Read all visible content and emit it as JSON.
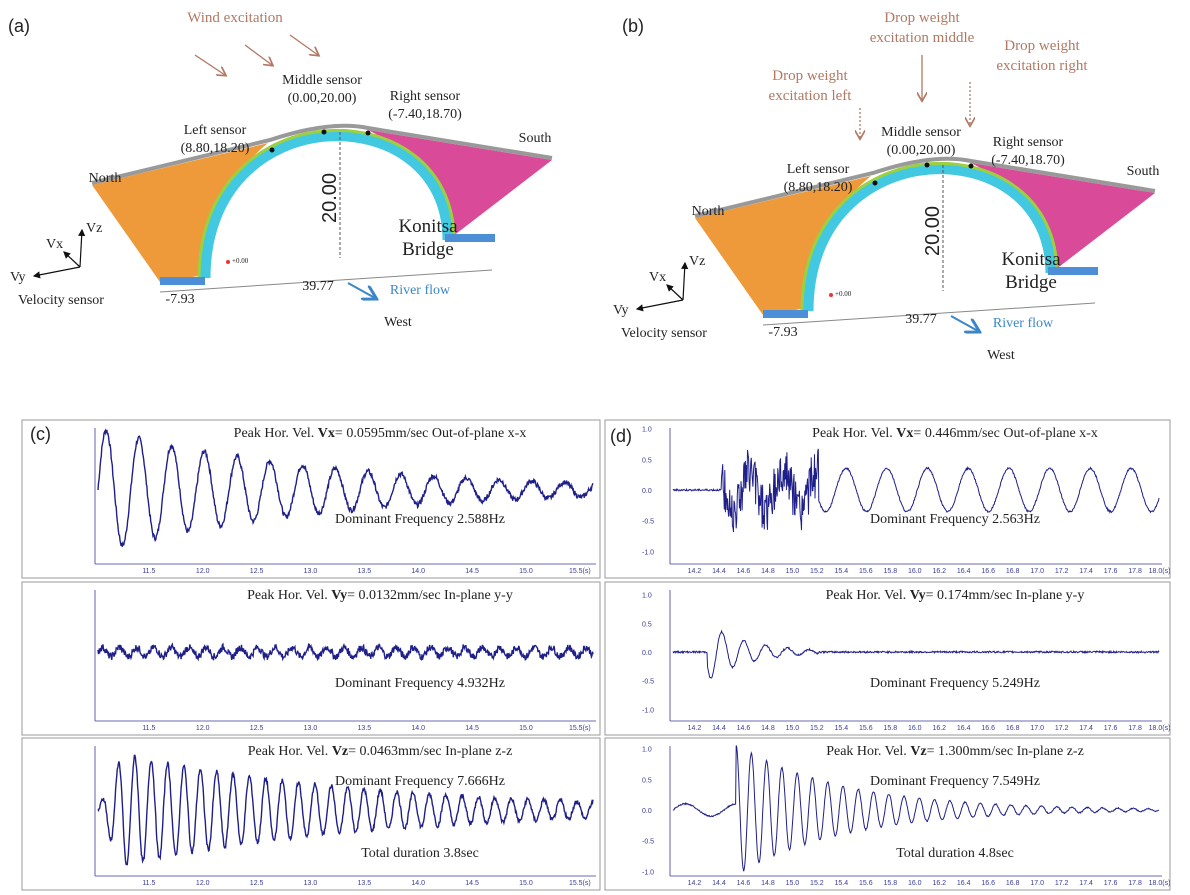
{
  "a": {
    "label": "(a)",
    "excitation": "Wind excitation",
    "north": "North",
    "south": "South",
    "left_sensor": [
      "Left sensor",
      "(8.80,18.20)"
    ],
    "middle_sensor": [
      "Middle sensor",
      "(0.00,20.00)"
    ],
    "right_sensor": [
      "Right sensor",
      "(-7.40,18.70)"
    ],
    "height": "20.00",
    "span": "39.77",
    "offset": "-7.93",
    "bridge": [
      "Konitsa",
      "Bridge"
    ],
    "river": "River flow",
    "west": "West",
    "axes": [
      "Vx",
      "Vz",
      "Vy"
    ],
    "velocity_sensor": "Velocity sensor",
    "zero": "+0.00"
  },
  "b": {
    "label": "(b)",
    "excitation_left": [
      "Drop weight",
      "excitation left"
    ],
    "excitation_middle": [
      "Drop weight",
      "excitation middle"
    ],
    "excitation_right": [
      "Drop weight",
      "excitation right"
    ],
    "north": "North",
    "south": "South",
    "left_sensor": [
      "Left sensor",
      "(8.80,18.20)"
    ],
    "middle_sensor": [
      "Middle sensor",
      "(0.00,20.00)"
    ],
    "right_sensor": [
      "Right sensor",
      "(-7.40,18.70)"
    ],
    "height": "20.00",
    "span": "39.77",
    "offset": "-7.93",
    "bridge": [
      "Konitsa",
      "Bridge"
    ],
    "river": "River flow",
    "west": "West",
    "axes": [
      "Vx",
      "Vz",
      "Vy"
    ],
    "velocity_sensor": "Velocity sensor",
    "zero": "+0.00"
  },
  "c": {
    "label": "(c)",
    "xticks": [
      "11.5",
      "12.0",
      "12.5",
      "13.0",
      "13.5",
      "14.0",
      "14.5",
      "15.0",
      "15.5(s)"
    ],
    "plots": [
      {
        "peak": [
          "Peak Hor. Vel. ",
          "Vx",
          "= 0.0595mm/sec Out-of-plane x-x"
        ],
        "frequency": "Dominant Frequency 2.588Hz"
      },
      {
        "peak": [
          "Peak Hor. Vel. ",
          "Vy",
          "= 0.0132mm/sec In-plane y-y"
        ],
        "frequency": "Dominant Frequency 4.932Hz"
      },
      {
        "peak": [
          "Peak Hor. Vel. ",
          "Vz",
          "= 0.0463mm/sec In-plane z-z"
        ],
        "frequency": "Dominant Frequency 7.666Hz",
        "duration": "Total duration 3.8sec"
      }
    ]
  },
  "d": {
    "label": "(d)",
    "yticks": [
      "1.0",
      "0.5",
      "0.0",
      "-0.5",
      "-1.0"
    ],
    "xticks": [
      "14.2",
      "14.4",
      "14.6",
      "14.8",
      "15.0",
      "15.2",
      "15.4",
      "15.6",
      "15.8",
      "16.0",
      "16.2",
      "16.4",
      "16.6",
      "16.8",
      "17.0",
      "17.2",
      "17.4",
      "17.6",
      "17.8",
      "18.0(s)"
    ],
    "plots": [
      {
        "peak": [
          "Peak Hor. Vel. ",
          "Vx",
          "= 0.446mm/sec Out-of-plane x-x"
        ],
        "frequency": "Dominant Frequency 2.563Hz"
      },
      {
        "peak": [
          "Peak Hor. Vel. ",
          "Vy",
          "= 0.174mm/sec In-plane y-y"
        ],
        "frequency": "Dominant Frequency 5.249Hz"
      },
      {
        "peak": [
          "Peak Hor. Vel. ",
          "Vz",
          "= 1.300mm/sec In-plane z-z"
        ],
        "frequency": "Dominant Frequency 7.549Hz",
        "duration": "Total duration 4.8sec"
      }
    ]
  }
}
